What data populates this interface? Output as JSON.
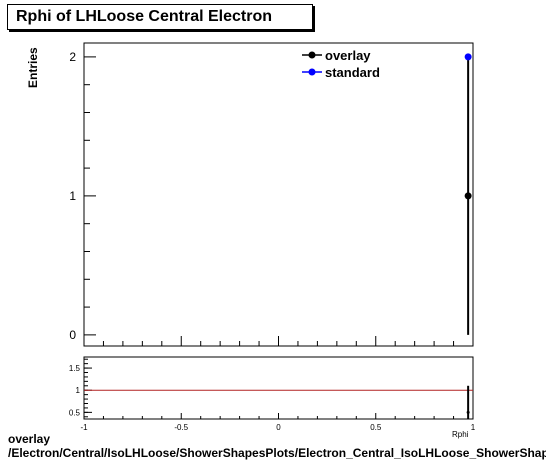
{
  "chart_data": {
    "type": "scatter",
    "title": "Rphi of LHLoose Central  Electron",
    "ylabel": "Entries",
    "xlabel": "Rphi",
    "xlim": [
      -1,
      1
    ],
    "ylim": [
      -0.08,
      2.1
    ],
    "y_ticks": [
      0,
      1,
      2
    ],
    "x_ticks": [
      -1,
      -0.5,
      0,
      0.5,
      1
    ],
    "x_tick_labels": [
      "-1",
      "-0.5",
      "0",
      "0.5",
      "1"
    ],
    "legend_position": "top-right",
    "series": [
      {
        "name": "overlay",
        "color": "#000000",
        "points": [
          {
            "x": 0.975,
            "y": 1,
            "err": 1
          }
        ]
      },
      {
        "name": "standard",
        "color": "#0000ff",
        "points": [
          {
            "x": 0.975,
            "y": 2
          }
        ]
      }
    ],
    "ratio": {
      "ylim": [
        0.35,
        1.75
      ],
      "y_ticks": [
        0.5,
        1,
        1.5
      ],
      "y_tick_labels": [
        "0.5",
        "1",
        "1.5"
      ],
      "reference_line": 1,
      "reference_color": "#b22222",
      "points": [
        {
          "x": 0.975,
          "y": 0.5,
          "err": 0.6
        }
      ]
    }
  },
  "footer": {
    "line1": "overlay",
    "line2": "/Electron/Central/IsoLHLoose/ShowerShapesPlots/Electron_Central_IsoLHLoose_ShowerShapes_Rphi"
  }
}
